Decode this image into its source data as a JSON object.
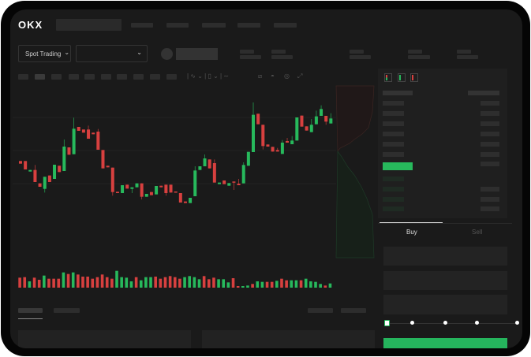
{
  "header": {
    "logo": "OKX",
    "nav_count": 5
  },
  "toolbar": {
    "market_button": "Spot Trading",
    "chevron": "⌄"
  },
  "order_form": {
    "buy_tab": "Buy",
    "sell_tab": "Sell",
    "leverage_steps": [
      0,
      25,
      50,
      75,
      100
    ],
    "leverage_value": 0
  },
  "colors": {
    "up": "#27b95c",
    "down": "#d7403f",
    "background": "#1a1a1a",
    "placeholder": "#2d2d2d"
  },
  "chart_data": {
    "type": "candlestick",
    "ohlc": [
      [
        200,
        200,
        190,
        190
      ],
      [
        200,
        200,
        168,
        168
      ],
      [
        160,
        166,
        160,
        166
      ],
      [
        166,
        185,
        120,
        120
      ],
      [
        115,
        115,
        102,
        102
      ],
      [
        94,
        140,
        80,
        140
      ],
      [
        145,
        145,
        120,
        120
      ],
      [
        132,
        186,
        132,
        186
      ],
      [
        182,
        182,
        158,
        158
      ],
      [
        162,
        282,
        162,
        255
      ],
      [
        252,
        252,
        224,
        224
      ],
      [
        226,
        365,
        226,
        323
      ],
      [
        330,
        330,
        315,
        315
      ],
      [
        320,
        320,
        308,
        308
      ],
      [
        320,
        335,
        285,
        285
      ],
      [
        308,
        308,
        302,
        302
      ],
      [
        312,
        322,
        243,
        243
      ],
      [
        242,
        242,
        172,
        172
      ],
      [
        182,
        182,
        176,
        176
      ],
      [
        175,
        175,
        68,
        82
      ],
      [
        83,
        83,
        78,
        78
      ],
      [
        78,
        108,
        78,
        108
      ],
      [
        110,
        110,
        95,
        95
      ],
      [
        94,
        100,
        78,
        100
      ],
      [
        100,
        115,
        100,
        115
      ],
      [
        115,
        115,
        54,
        64
      ],
      [
        64,
        75,
        64,
        75
      ],
      [
        82,
        82,
        70,
        70
      ],
      [
        73,
        105,
        73,
        105
      ],
      [
        106,
        106,
        100,
        100
      ],
      [
        110,
        110,
        68,
        78
      ],
      [
        110,
        110,
        80,
        80
      ],
      [
        84,
        84,
        80,
        80
      ],
      [
        78,
        78,
        42,
        42
      ],
      [
        46,
        46,
        40,
        40
      ],
      [
        40,
        60,
        40,
        60
      ],
      [
        66,
        180,
        66,
        164
      ],
      [
        166,
        180,
        166,
        180
      ],
      [
        180,
        225,
        180,
        210
      ],
      [
        206,
        206,
        172,
        172
      ],
      [
        192,
        206,
        118,
        118
      ],
      [
        112,
        118,
        112,
        118
      ],
      [
        126,
        126,
        112,
        112
      ],
      [
        106,
        116,
        106,
        116
      ],
      [
        122,
        122,
        90,
        118
      ],
      [
        114,
        132,
        108,
        108
      ],
      [
        115,
        195,
        115,
        185
      ],
      [
        182,
        235,
        182,
        235
      ],
      [
        234,
        423,
        234,
        376
      ],
      [
        380,
        380,
        340,
        340
      ],
      [
        338,
        338,
        244,
        257
      ],
      [
        263,
        263,
        255,
        255
      ],
      [
        254,
        254,
        236,
        236
      ],
      [
        242,
        250,
        236,
        236
      ],
      [
        227,
        280,
        227,
        270
      ],
      [
        276,
        288,
        270,
        270
      ],
      [
        264,
        295,
        264,
        278
      ],
      [
        278,
        366,
        278,
        366
      ],
      [
        373,
        373,
        331,
        331
      ],
      [
        332,
        332,
        316,
        316
      ],
      [
        310,
        360,
        310,
        338
      ],
      [
        340,
        392,
        340,
        370
      ],
      [
        372,
        412,
        372,
        398
      ],
      [
        372,
        372,
        338,
        350
      ],
      [
        343,
        382,
        343,
        362
      ]
    ],
    "volume": [
      [
        38,
        "down"
      ],
      [
        40,
        "down"
      ],
      [
        24,
        "up"
      ],
      [
        38,
        "down"
      ],
      [
        30,
        "down"
      ],
      [
        46,
        "up"
      ],
      [
        34,
        "down"
      ],
      [
        34,
        "down"
      ],
      [
        34,
        "down"
      ],
      [
        58,
        "up"
      ],
      [
        52,
        "down"
      ],
      [
        58,
        "up"
      ],
      [
        50,
        "down"
      ],
      [
        42,
        "down"
      ],
      [
        42,
        "down"
      ],
      [
        34,
        "down"
      ],
      [
        40,
        "down"
      ],
      [
        50,
        "down"
      ],
      [
        40,
        "down"
      ],
      [
        34,
        "down"
      ],
      [
        64,
        "up"
      ],
      [
        40,
        "up"
      ],
      [
        38,
        "up"
      ],
      [
        24,
        "up"
      ],
      [
        40,
        "down"
      ],
      [
        28,
        "up"
      ],
      [
        40,
        "up"
      ],
      [
        40,
        "up"
      ],
      [
        42,
        "down"
      ],
      [
        34,
        "down"
      ],
      [
        40,
        "down"
      ],
      [
        44,
        "down"
      ],
      [
        40,
        "down"
      ],
      [
        34,
        "down"
      ],
      [
        40,
        "up"
      ],
      [
        44,
        "up"
      ],
      [
        40,
        "up"
      ],
      [
        32,
        "up"
      ],
      [
        44,
        "down"
      ],
      [
        32,
        "down"
      ],
      [
        38,
        "down"
      ],
      [
        32,
        "up"
      ],
      [
        32,
        "up"
      ],
      [
        20,
        "up"
      ],
      [
        36,
        "down"
      ],
      [
        6,
        "down"
      ],
      [
        6,
        "up"
      ],
      [
        8,
        "up"
      ],
      [
        14,
        "down"
      ],
      [
        24,
        "up"
      ],
      [
        22,
        "up"
      ],
      [
        22,
        "down"
      ],
      [
        22,
        "down"
      ],
      [
        26,
        "up"
      ],
      [
        34,
        "down"
      ],
      [
        28,
        "down"
      ],
      [
        28,
        "up"
      ],
      [
        28,
        "up"
      ],
      [
        28,
        "down"
      ],
      [
        34,
        "up"
      ],
      [
        24,
        "up"
      ],
      [
        22,
        "up"
      ],
      [
        14,
        "up"
      ],
      [
        8,
        "down"
      ],
      [
        16,
        "up"
      ]
    ],
    "grid": true
  }
}
